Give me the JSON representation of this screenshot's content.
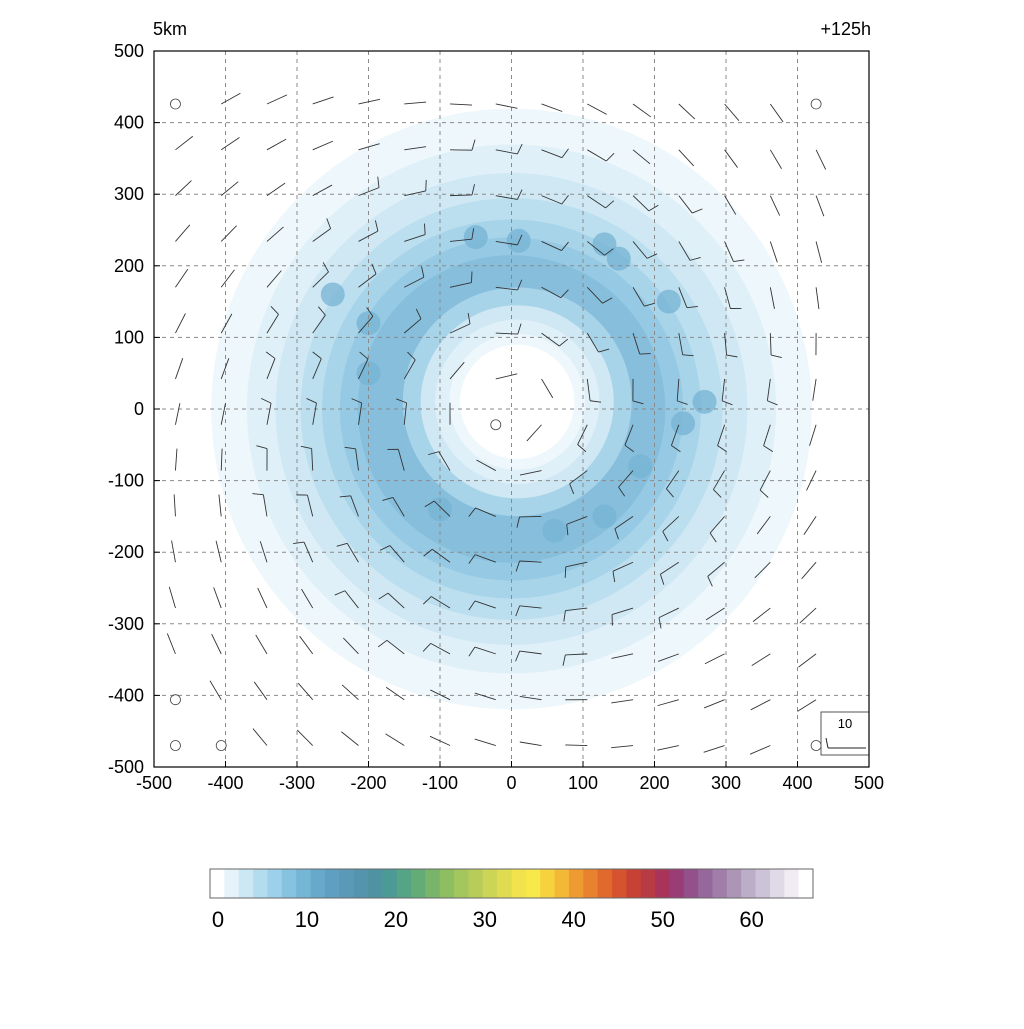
{
  "chart_data": {
    "type": "heatmap",
    "title_left": "5km",
    "title_right": "+125h",
    "xlim": [
      -500,
      500
    ],
    "ylim": [
      -500,
      500
    ],
    "x_ticks": [
      -500,
      -400,
      -300,
      -200,
      -100,
      0,
      100,
      200,
      300,
      400,
      500
    ],
    "y_ticks": [
      -500,
      -400,
      -300,
      -200,
      -100,
      0,
      100,
      200,
      300,
      400,
      500
    ],
    "x_tick_labels": [
      "-500",
      "-400",
      "-300",
      "-200",
      "-100",
      "0",
      "100",
      "200",
      "300",
      "400",
      "500"
    ],
    "y_tick_labels": [
      "-500",
      "-400",
      "-300",
      "-200",
      "-100",
      "0",
      "100",
      "200",
      "300",
      "400",
      "500"
    ],
    "grid": true,
    "field": {
      "center": [
        0,
        0
      ],
      "eye_radius_km": 80,
      "ring_peak_radius_km": 190,
      "ring_peak_value": 14,
      "outer_edge_radius_km": 420
    },
    "wind_barb_reference": {
      "label": "10",
      "placement": "bottom-right"
    },
    "colorbar": {
      "min": 0,
      "max": 66,
      "tick_values": [
        0,
        10,
        20,
        30,
        40,
        50,
        60
      ],
      "tick_labels": [
        "0",
        "10",
        "20",
        "30",
        "40",
        "50",
        "60"
      ],
      "colors": [
        "#ffffff",
        "#e6f3fa",
        "#cde8f5",
        "#b3dcef",
        "#9dd0ea",
        "#86c3e1",
        "#75b6d6",
        "#67a9cb",
        "#5f9fc2",
        "#5a99b8",
        "#5495ad",
        "#4f93a3",
        "#4c9a95",
        "#56a486",
        "#64ac76",
        "#78b56a",
        "#8dbe62",
        "#a3c65d",
        "#b8cd59",
        "#cdd556",
        "#e0dc52",
        "#f1e24e",
        "#f8e84a",
        "#f7d23f",
        "#f4b837",
        "#ee9c32",
        "#e8822f",
        "#e0692e",
        "#d5532f",
        "#c84233",
        "#b83a45",
        "#a8345a",
        "#9a3d76",
        "#93508a",
        "#96679b",
        "#a07ea9",
        "#ad95b8",
        "#bcadc8",
        "#cdc3d8",
        "#e0d9e7",
        "#f1ecf4",
        "#ffffff"
      ]
    }
  }
}
